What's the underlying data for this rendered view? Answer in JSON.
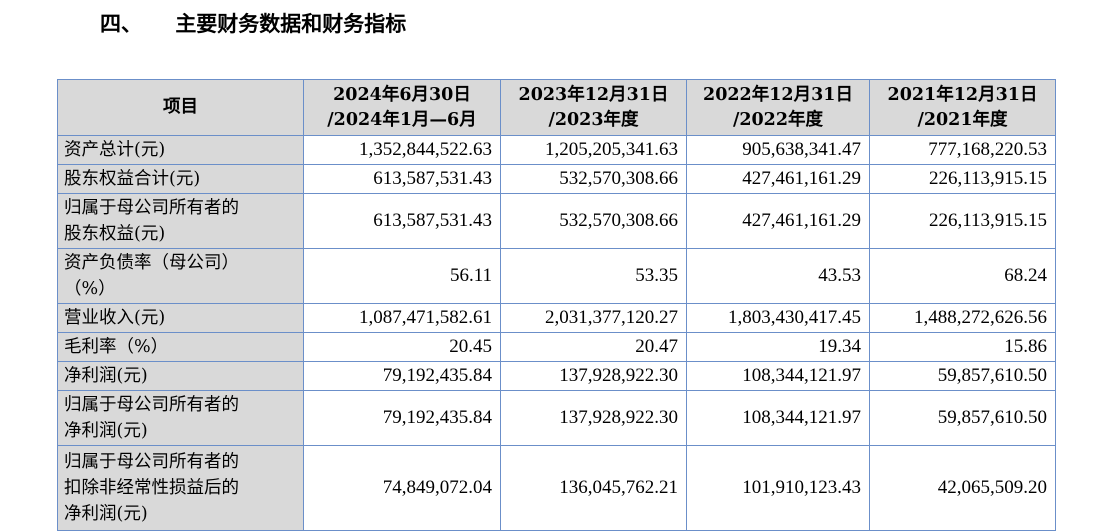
{
  "section": {
    "number": "四、",
    "title": "主要财务数据和财务指标"
  },
  "table": {
    "header": {
      "item_label": "项目",
      "periods": [
        {
          "line1": "2024年6月30日",
          "line2": "/2024年1月—6月"
        },
        {
          "line1": "2023年12月31日",
          "line2": "/2023年度"
        },
        {
          "line1": "2022年12月31日",
          "line2": "/2022年度"
        },
        {
          "line1": "2021年12月31日",
          "line2": "/2021年度"
        }
      ]
    },
    "rows": [
      {
        "label": "资产总计(元)",
        "values": [
          "1,352,844,522.63",
          "1,205,205,341.63",
          "905,638,341.47",
          "777,168,220.53"
        ]
      },
      {
        "label": "股东权益合计(元)",
        "values": [
          "613,587,531.43",
          "532,570,308.66",
          "427,461,161.29",
          "226,113,915.15"
        ]
      },
      {
        "label": "归属于母公司所有者的\n股东权益(元)",
        "values": [
          "613,587,531.43",
          "532,570,308.66",
          "427,461,161.29",
          "226,113,915.15"
        ]
      },
      {
        "label": "资产负债率（母公司）\n（%）",
        "values": [
          "56.11",
          "53.35",
          "43.53",
          "68.24"
        ]
      },
      {
        "label": "营业收入(元)",
        "values": [
          "1,087,471,582.61",
          "2,031,377,120.27",
          "1,803,430,417.45",
          "1,488,272,626.56"
        ]
      },
      {
        "label": "毛利率（%）",
        "values": [
          "20.45",
          "20.47",
          "19.34",
          "15.86"
        ]
      },
      {
        "label": "净利润(元)",
        "values": [
          "79,192,435.84",
          "137,928,922.30",
          "108,344,121.97",
          "59,857,610.50"
        ]
      },
      {
        "label": "归属于母公司所有者的\n净利润(元)",
        "values": [
          "79,192,435.84",
          "137,928,922.30",
          "108,344,121.97",
          "59,857,610.50"
        ]
      },
      {
        "label": "归属于母公司所有者的\n扣除非经常性损益后的\n净利润(元)",
        "values": [
          "74,849,072.04",
          "136,045,762.21",
          "101,910,123.43",
          "42,065,509.20"
        ]
      }
    ]
  }
}
